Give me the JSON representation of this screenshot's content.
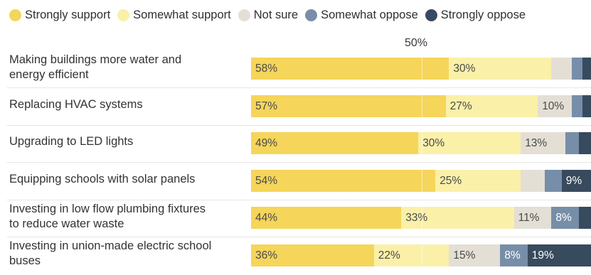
{
  "chart_data": {
    "type": "bar",
    "orientation": "horizontal",
    "stacked": true,
    "legend_position": "top",
    "reference_label": "50%",
    "reference_value": 50,
    "series": [
      {
        "name": "Strongly support",
        "color": "#f5d55a",
        "values": [
          58,
          57,
          49,
          54,
          44,
          36
        ]
      },
      {
        "name": "Somewhat support",
        "color": "#faf0a8",
        "values": [
          30,
          27,
          30,
          25,
          33,
          22
        ]
      },
      {
        "name": "Not sure",
        "color": "#e3dfd5",
        "values": [
          6,
          10,
          13,
          7,
          11,
          15
        ]
      },
      {
        "name": "Somewhat oppose",
        "color": "#778ea8",
        "values": [
          3,
          3,
          4,
          5,
          8,
          8
        ]
      },
      {
        "name": "Strongly oppose",
        "color": "#384a5d",
        "values": [
          3,
          3,
          4,
          9,
          4,
          19
        ]
      }
    ],
    "data_labels": [
      [
        "58%",
        "30%",
        "",
        "",
        ""
      ],
      [
        "57%",
        "27%",
        "10%",
        "",
        ""
      ],
      [
        "49%",
        "30%",
        "13%",
        "",
        ""
      ],
      [
        "54%",
        "25%",
        "",
        "",
        "9%"
      ],
      [
        "44%",
        "33%",
        "11%",
        "8%",
        ""
      ],
      [
        "36%",
        "22%",
        "15%",
        "8%",
        "19%"
      ]
    ],
    "label_colors": [
      "#4a4a4a",
      "#4a4a4a",
      "#4a4a4a",
      "#ffffff",
      "#ffffff"
    ],
    "categories": [
      [
        "Making buildings more water and",
        "energy efficient"
      ],
      [
        "Replacing HVAC systems"
      ],
      [
        "Upgrading to LED lights"
      ],
      [
        "Equipping schools with solar panels"
      ],
      [
        "Investing in low flow plumbing fixtures",
        "to reduce water waste"
      ],
      [
        "Investing in union-made electric school",
        "buses"
      ]
    ]
  }
}
